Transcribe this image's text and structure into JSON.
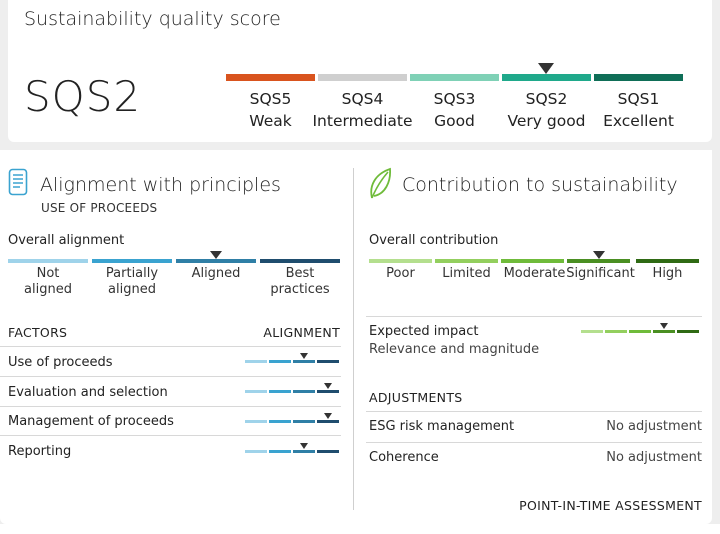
{
  "header": {
    "title": "Sustainability quality score",
    "score": "SQS2",
    "levels": [
      {
        "code": "SQS5",
        "name": "Weak",
        "color": "#d9541e"
      },
      {
        "code": "SQS4",
        "name": "Intermediate",
        "color": "#cfcfcf"
      },
      {
        "code": "SQS3",
        "name": "Good",
        "color": "#7fd1b6"
      },
      {
        "code": "SQS2",
        "name": "Very good",
        "color": "#1fa98b"
      },
      {
        "code": "SQS1",
        "name": "Excellent",
        "color": "#0f6e57"
      }
    ],
    "selected_index": 3
  },
  "alignment": {
    "title": "Alignment with principles",
    "subtitle": "USE OF PROCEEDS",
    "overall_label": "Overall alignment",
    "levels": [
      {
        "line1": "Not",
        "line2": "aligned",
        "color": "#9fd3ea"
      },
      {
        "line1": "Partially",
        "line2": "aligned",
        "color": "#3aa3d0"
      },
      {
        "line1": "Aligned",
        "line2": "",
        "color": "#2f7fa6"
      },
      {
        "line1": "Best",
        "line2": "practices",
        "color": "#1f4d6e"
      }
    ],
    "overall_index": 2,
    "factors_header": "FACTORS",
    "alignment_header": "ALIGNMENT",
    "factors": [
      {
        "name": "Use of proceeds",
        "level_index": 2
      },
      {
        "name": "Evaluation and selection",
        "level_index": 3
      },
      {
        "name": "Management of proceeds",
        "level_index": 3
      },
      {
        "name": "Reporting",
        "level_index": 2
      }
    ]
  },
  "contribution": {
    "title": "Contribution to sustainability",
    "overall_label": "Overall contribution",
    "levels": [
      {
        "name": "Poor",
        "color": "#b4df8e"
      },
      {
        "name": "Limited",
        "color": "#93cf5e"
      },
      {
        "name": "Moderate",
        "color": "#6fbb3a"
      },
      {
        "name": "Significant",
        "color": "#4a8f22"
      },
      {
        "name": "High",
        "color": "#2f6a14"
      }
    ],
    "overall_index": 3,
    "impact_label": "Expected impact",
    "impact_sub": "Relevance and magnitude",
    "impact_index": 3,
    "adjustments_header": "ADJUSTMENTS",
    "adjustments": [
      {
        "name": "ESG risk management",
        "value": "No adjustment"
      },
      {
        "name": "Coherence",
        "value": "No adjustment"
      }
    ],
    "footer": "POINT-IN-TIME ASSESSMENT"
  },
  "icons": {
    "alignment": "document-list-icon",
    "contribution": "leaf-icon"
  }
}
